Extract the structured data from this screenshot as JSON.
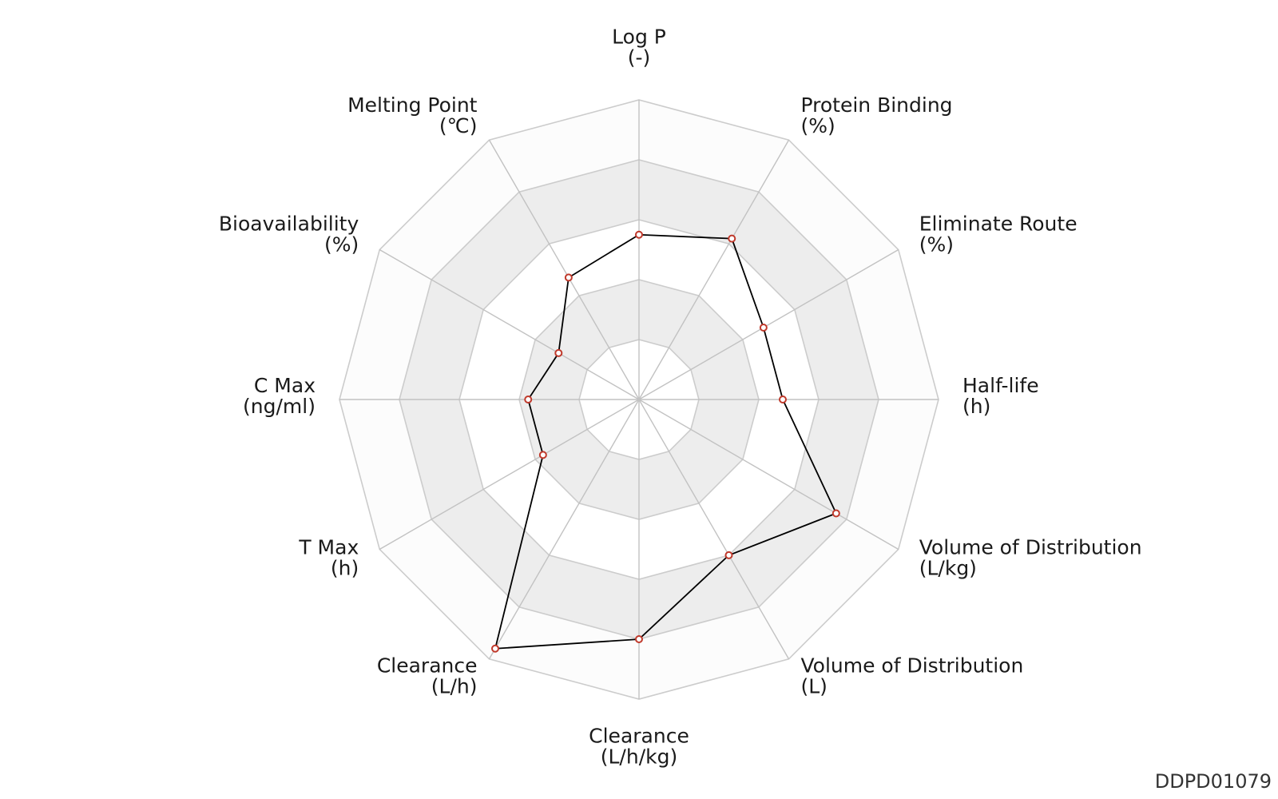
{
  "chart_data": {
    "type": "radar",
    "axes": [
      {
        "name": "Log P",
        "unit": "(-)"
      },
      {
        "name": "Protein Binding",
        "unit": "(%)"
      },
      {
        "name": "Eliminate Route",
        "unit": "(%)"
      },
      {
        "name": "Half-life",
        "unit": "(h)"
      },
      {
        "name": "Volume of Distribution",
        "unit": "(L/kg)"
      },
      {
        "name": "Volume of Distribution",
        "unit": "(L)"
      },
      {
        "name": "Clearance",
        "unit": "(L/h/kg)"
      },
      {
        "name": "Clearance",
        "unit": "(L/h)"
      },
      {
        "name": "T Max",
        "unit": "(h)"
      },
      {
        "name": "C Max",
        "unit": "(ng/ml)"
      },
      {
        "name": "Bioavailability",
        "unit": "(%)"
      },
      {
        "name": "Melting Point",
        "unit": "(℃)"
      }
    ],
    "levels": 5,
    "scale_max": 1,
    "values": [
      0.55,
      0.62,
      0.48,
      0.48,
      0.76,
      0.6,
      0.8,
      0.96,
      0.37,
      0.37,
      0.31,
      0.47
    ],
    "ring_fills": [
      "#ffffff",
      "#ededed",
      "#ffffff",
      "#ededed",
      "#fcfcfc"
    ],
    "ring_stroke_color": "#cccccc",
    "line_color": "#000000",
    "marker_color": "#c0392b",
    "grid": true,
    "legend": "none"
  },
  "watermark": "DDPD01079"
}
